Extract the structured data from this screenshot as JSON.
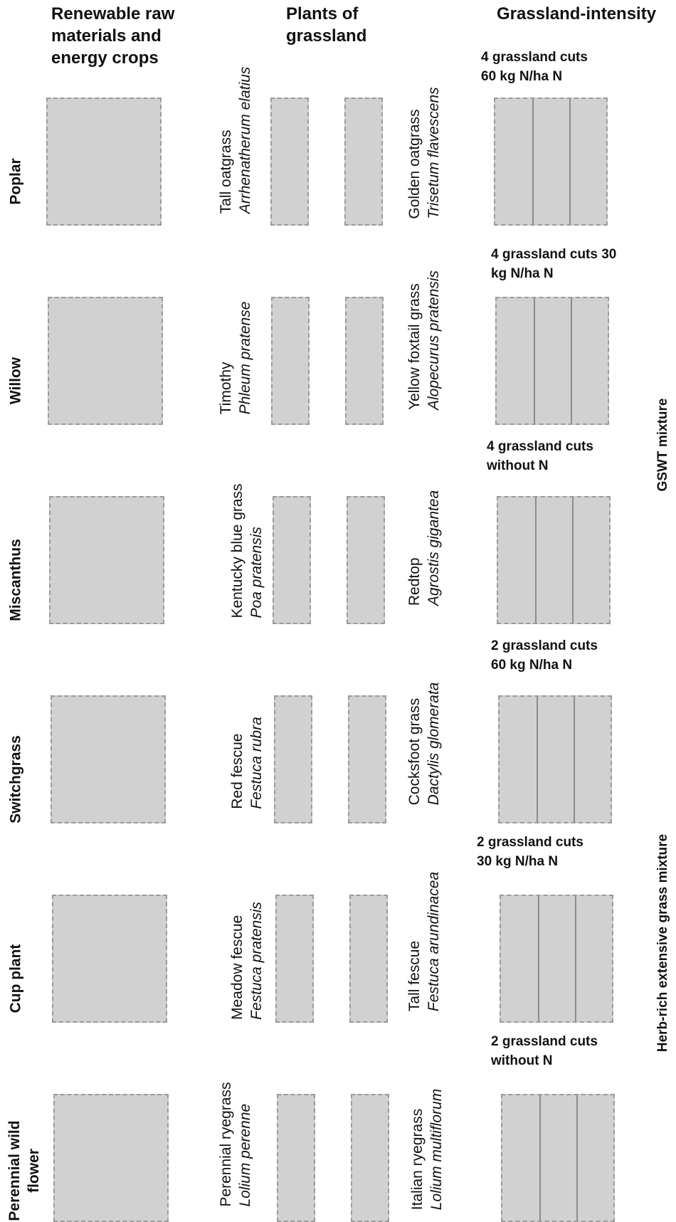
{
  "headers": {
    "col1": "Renewable raw\nmaterials and\nenergy crops",
    "col2": "Plants of\ngrassland",
    "col3": "Grassland-intensity"
  },
  "rows": [
    {
      "crop": "Poplar",
      "grass_a": {
        "name": "Tall oatgrass",
        "species": "Arrhenatherum elatius"
      },
      "grass_b": {
        "name": "Golden oatgrass",
        "species": "Trisetum flavescens"
      },
      "intensity": "4 grassland cuts\n60 kg N/ha N"
    },
    {
      "crop": "Willow",
      "grass_a": {
        "name": "Timothy",
        "species": "Phleum pratense"
      },
      "grass_b": {
        "name": "Yellow foxtail grass",
        "species": "Alopecurus pratensis"
      },
      "intensity": "4 grassland cuts  30\nkg N/ha N"
    },
    {
      "crop": "Miscanthus",
      "grass_a": {
        "name": "Kentucky blue grass",
        "species": "Poa pratensis"
      },
      "grass_b": {
        "name": "Redtop",
        "species": "Agrostis gigantea"
      },
      "intensity": "4 grassland cuts\nwithout N"
    },
    {
      "crop": "Switchgrass",
      "grass_a": {
        "name": "Red fescue",
        "species": "Festuca rubra"
      },
      "grass_b": {
        "name": "Cocksfoot grass",
        "species": "Dactylis glomerata"
      },
      "intensity": "2 grassland cuts\n60 kg N/ha N"
    },
    {
      "crop": "Cup plant",
      "grass_a": {
        "name": "Meadow fescue",
        "species": "Festuca pratensis"
      },
      "grass_b": {
        "name": "Tall fescue",
        "species": "Festuca arundinacea"
      },
      "intensity": "2 grassland cuts\n30 kg N/ha N"
    },
    {
      "crop": "Perennial wild\nflower",
      "grass_a": {
        "name": "Perennial ryegrass",
        "species": "Lolium perenne"
      },
      "grass_b": {
        "name": "Italian ryegrass",
        "species": "Lolium multiflorum"
      },
      "intensity": "2 grassland cuts\nwithout N"
    }
  ],
  "side_labels": {
    "upper": "GSWT mixture",
    "lower": "Herb-rich extensive grass mixture"
  },
  "colors": {
    "plot_fill": "#d1d1d1",
    "plot_border": "#9a9a9a",
    "divider": "#8c8c8c"
  }
}
